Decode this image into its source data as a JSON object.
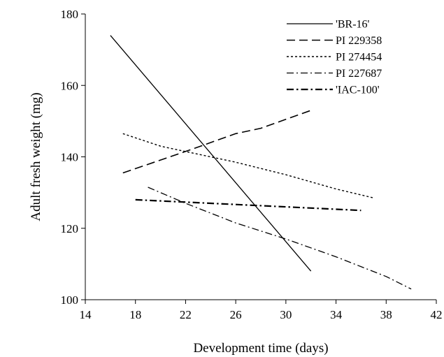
{
  "chart_data": {
    "type": "line",
    "xlabel": "Development time (days)",
    "ylabel": "Adult fresh weight (mg)",
    "xlim": [
      14,
      42
    ],
    "ylim": [
      100,
      180
    ],
    "xticks": [
      14,
      18,
      22,
      26,
      30,
      34,
      38,
      42
    ],
    "yticks": [
      100,
      120,
      140,
      160,
      180
    ],
    "grid": false,
    "legend_position": "top-right",
    "line_color": "#000000",
    "series": [
      {
        "name": "'BR-16'",
        "dash": "solid",
        "points": [
          [
            16,
            174
          ],
          [
            32,
            108
          ]
        ]
      },
      {
        "name": "PI 229358",
        "dash": "long-dash",
        "points": [
          [
            17,
            135.5
          ],
          [
            22,
            141.5
          ],
          [
            26,
            146.5
          ],
          [
            28,
            148
          ],
          [
            30,
            150.5
          ],
          [
            32,
            153
          ]
        ]
      },
      {
        "name": "PI 274454",
        "dash": "dotted",
        "points": [
          [
            17,
            146.5
          ],
          [
            20,
            143
          ],
          [
            26,
            138.5
          ],
          [
            30,
            135
          ],
          [
            34,
            131
          ],
          [
            37,
            128.5
          ]
        ]
      },
      {
        "name": "PI 227687",
        "dash": "dash-dot",
        "points": [
          [
            19,
            131.5
          ],
          [
            22,
            127
          ],
          [
            26,
            121.5
          ],
          [
            30,
            117
          ],
          [
            34,
            112
          ],
          [
            38,
            106.5
          ],
          [
            40,
            103
          ]
        ]
      },
      {
        "name": "'IAC-100'",
        "dash": "bold-dash-dot",
        "points": [
          [
            18,
            128
          ],
          [
            24,
            127
          ],
          [
            30,
            126
          ],
          [
            36,
            125
          ]
        ]
      }
    ]
  }
}
